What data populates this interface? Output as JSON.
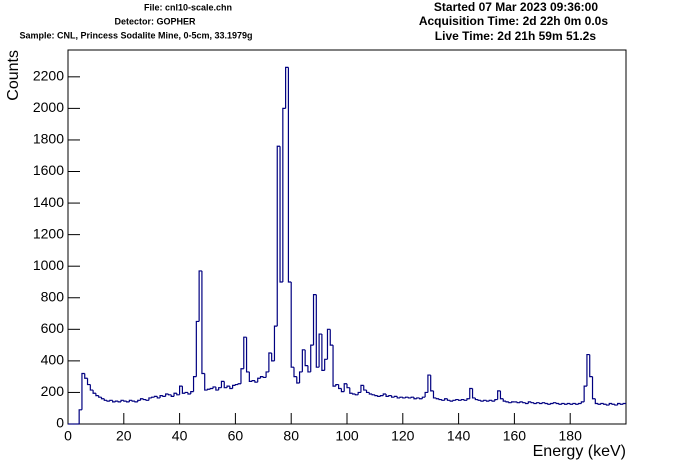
{
  "chart_data": {
    "type": "histogram",
    "header_left": [
      "File: cnl10-scale.chn",
      "Detector: GOPHER",
      "Sample: CNL, Princess Sodalite Mine, 0-5cm, 33.1979g"
    ],
    "header_right": [
      "Started 07 Mar 2023 09:36:00",
      "Acquisition Time: 2d 22h 0m 0.0s",
      "Live Time: 2d 21h 59m 51.2s"
    ],
    "x_label": "Energy (keV)",
    "y_label": "Counts",
    "color": "#000080",
    "xlim": [
      0,
      200
    ],
    "ylim": [
      0,
      2370
    ],
    "xticks": [
      0,
      20,
      40,
      60,
      80,
      100,
      120,
      140,
      160,
      180
    ],
    "yticks": [
      0,
      200,
      400,
      600,
      800,
      1000,
      1200,
      1400,
      1600,
      1800,
      2000,
      2200
    ],
    "bins": [
      0,
      1,
      2,
      3,
      4,
      5,
      6,
      7,
      8,
      9,
      10,
      11,
      12,
      13,
      14,
      15,
      16,
      17,
      18,
      19,
      20,
      21,
      22,
      23,
      24,
      25,
      26,
      27,
      28,
      29,
      30,
      31,
      32,
      33,
      34,
      35,
      36,
      37,
      38,
      39,
      40,
      41,
      42,
      43,
      44,
      45,
      46,
      47,
      48,
      49,
      50,
      51,
      52,
      53,
      54,
      55,
      56,
      57,
      58,
      59,
      60,
      61,
      62,
      63,
      64,
      65,
      66,
      67,
      68,
      69,
      70,
      71,
      72,
      73,
      74,
      75,
      76,
      77,
      78,
      79,
      80,
      81,
      82,
      83,
      84,
      85,
      86,
      87,
      88,
      89,
      90,
      91,
      92,
      93,
      94,
      95,
      96,
      97,
      98,
      99,
      100,
      101,
      102,
      103,
      104,
      105,
      106,
      107,
      108,
      109,
      110,
      111,
      112,
      113,
      114,
      115,
      116,
      117,
      118,
      119,
      120,
      121,
      122,
      123,
      124,
      125,
      126,
      127,
      128,
      129,
      130,
      131,
      132,
      133,
      134,
      135,
      136,
      137,
      138,
      139,
      140,
      141,
      142,
      143,
      144,
      145,
      146,
      147,
      148,
      149,
      150,
      151,
      152,
      153,
      154,
      155,
      156,
      157,
      158,
      159,
      160,
      161,
      162,
      163,
      164,
      165,
      166,
      167,
      168,
      169,
      170,
      171,
      172,
      173,
      174,
      175,
      176,
      177,
      178,
      179,
      180,
      181,
      182,
      183,
      184,
      185,
      186,
      187,
      188,
      189,
      190,
      191,
      192,
      193,
      194,
      195,
      196,
      197,
      198,
      199,
      200
    ],
    "values": [
      0,
      0,
      0,
      0,
      90,
      320,
      290,
      250,
      215,
      195,
      180,
      170,
      160,
      150,
      145,
      150,
      140,
      145,
      140,
      150,
      145,
      140,
      150,
      145,
      140,
      150,
      160,
      155,
      150,
      165,
      170,
      175,
      165,
      180,
      175,
      190,
      185,
      175,
      195,
      185,
      240,
      195,
      200,
      190,
      205,
      300,
      650,
      970,
      320,
      215,
      220,
      225,
      235,
      215,
      230,
      270,
      230,
      240,
      225,
      245,
      250,
      255,
      350,
      550,
      330,
      270,
      275,
      265,
      290,
      300,
      295,
      330,
      450,
      400,
      620,
      1760,
      900,
      2000,
      2260,
      900,
      360,
      300,
      260,
      330,
      470,
      370,
      330,
      500,
      820,
      360,
      570,
      340,
      410,
      600,
      500,
      240,
      250,
      225,
      205,
      255,
      230,
      195,
      190,
      185,
      200,
      245,
      215,
      200,
      190,
      185,
      180,
      175,
      180,
      190,
      175,
      180,
      170,
      175,
      165,
      170,
      165,
      170,
      165,
      170,
      160,
      165,
      160,
      170,
      200,
      310,
      210,
      165,
      160,
      155,
      150,
      160,
      150,
      145,
      150,
      155,
      150,
      155,
      150,
      160,
      225,
      165,
      155,
      150,
      145,
      150,
      145,
      150,
      145,
      155,
      210,
      160,
      145,
      140,
      135,
      140,
      140,
      135,
      140,
      135,
      130,
      140,
      135,
      130,
      135,
      130,
      135,
      130,
      125,
      130,
      135,
      130,
      125,
      130,
      125,
      130,
      125,
      130,
      125,
      130,
      140,
      240,
      440,
      300,
      160,
      130,
      125,
      130,
      125,
      120,
      130,
      125,
      120,
      130,
      125,
      130
    ]
  }
}
